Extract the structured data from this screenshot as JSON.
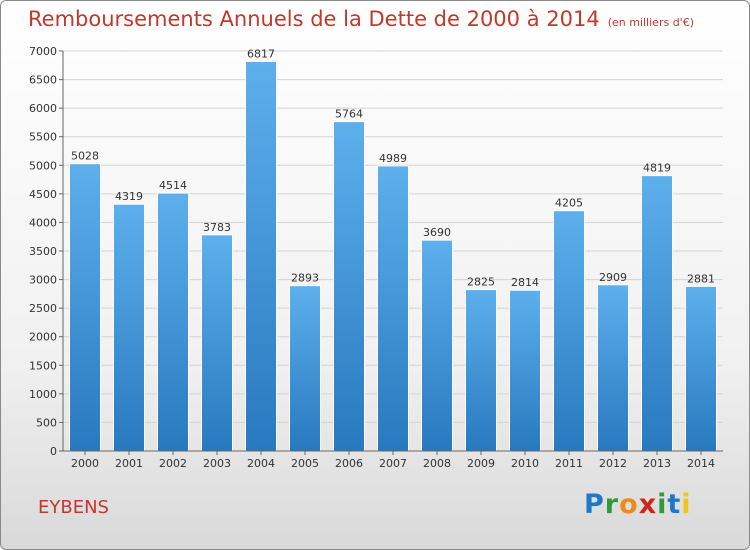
{
  "header": {
    "title": "Remboursements Annuels de la Dette de 2000 à 2014",
    "unit": "(en milliers d'€)"
  },
  "footer": {
    "city": "EYBENS",
    "logo_letters": [
      {
        "ch": "P",
        "color": "#1f77c8"
      },
      {
        "ch": "r",
        "color": "#2e9a3a"
      },
      {
        "ch": "o",
        "color": "#f08a1c"
      },
      {
        "ch": "x",
        "color": "#d0241b"
      },
      {
        "ch": "i",
        "color": "#2e9a3a"
      },
      {
        "ch": "t",
        "color": "#1f77c8"
      },
      {
        "ch": "i",
        "color": "#f0c419"
      }
    ]
  },
  "chart_data": {
    "type": "bar",
    "title": "Remboursements Annuels de la Dette de 2000 à 2014",
    "categories": [
      "2000",
      "2001",
      "2002",
      "2003",
      "2004",
      "2005",
      "2006",
      "2007",
      "2008",
      "2009",
      "2010",
      "2011",
      "2012",
      "2013",
      "2014"
    ],
    "values": [
      5028,
      4319,
      4514,
      3783,
      6817,
      2893,
      5764,
      4989,
      3690,
      2825,
      2814,
      4205,
      2909,
      4819,
      2881
    ],
    "ylim": [
      0,
      7000
    ],
    "yticks": [
      0,
      500,
      1000,
      1500,
      2000,
      2500,
      3000,
      3500,
      4000,
      4500,
      5000,
      5500,
      6000,
      6500,
      7000
    ],
    "grid": true,
    "bar_color": "#4a9fe0"
  }
}
